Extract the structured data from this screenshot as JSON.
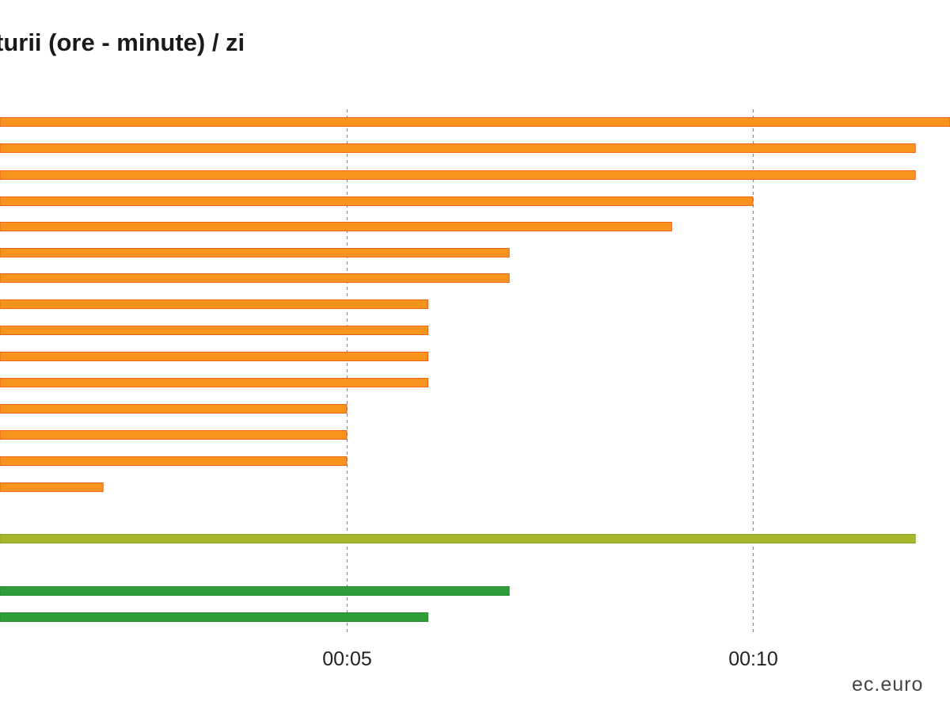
{
  "chart_data": {
    "type": "bar",
    "orientation": "horizontal",
    "title": "turii (ore - minute) / zi",
    "x_axis": {
      "unit": "minutes",
      "range_minutes": [
        0,
        12.5
      ],
      "ticks": [
        {
          "value": 5,
          "label": "00:05"
        },
        {
          "value": 10,
          "label": "00:10"
        }
      ],
      "gridlines": "dashed vertical"
    },
    "bars": [
      {
        "value": 12.5,
        "color": "#f7941d"
      },
      {
        "value": 12,
        "color": "#f7941d"
      },
      {
        "value": 12,
        "color": "#f7941d"
      },
      {
        "value": 10,
        "color": "#f7941d"
      },
      {
        "value": 9,
        "color": "#f7941d"
      },
      {
        "value": 7,
        "color": "#f7941d"
      },
      {
        "value": 7,
        "color": "#f7941d"
      },
      {
        "value": 6,
        "color": "#f7941d"
      },
      {
        "value": 6,
        "color": "#f7941d"
      },
      {
        "value": 6,
        "color": "#f7941d"
      },
      {
        "value": 6,
        "color": "#f7941d"
      },
      {
        "value": 5,
        "color": "#f7941d"
      },
      {
        "value": 5,
        "color": "#f7941d"
      },
      {
        "value": 5,
        "color": "#f7941d"
      },
      {
        "value": 2,
        "color": "#f7941d"
      },
      {
        "value": 12,
        "color": "#a8b62c"
      },
      {
        "value": 7,
        "color": "#2f9e3a"
      },
      {
        "value": 6,
        "color": "#2f9e3a"
      }
    ]
  },
  "source": "ec.euro"
}
